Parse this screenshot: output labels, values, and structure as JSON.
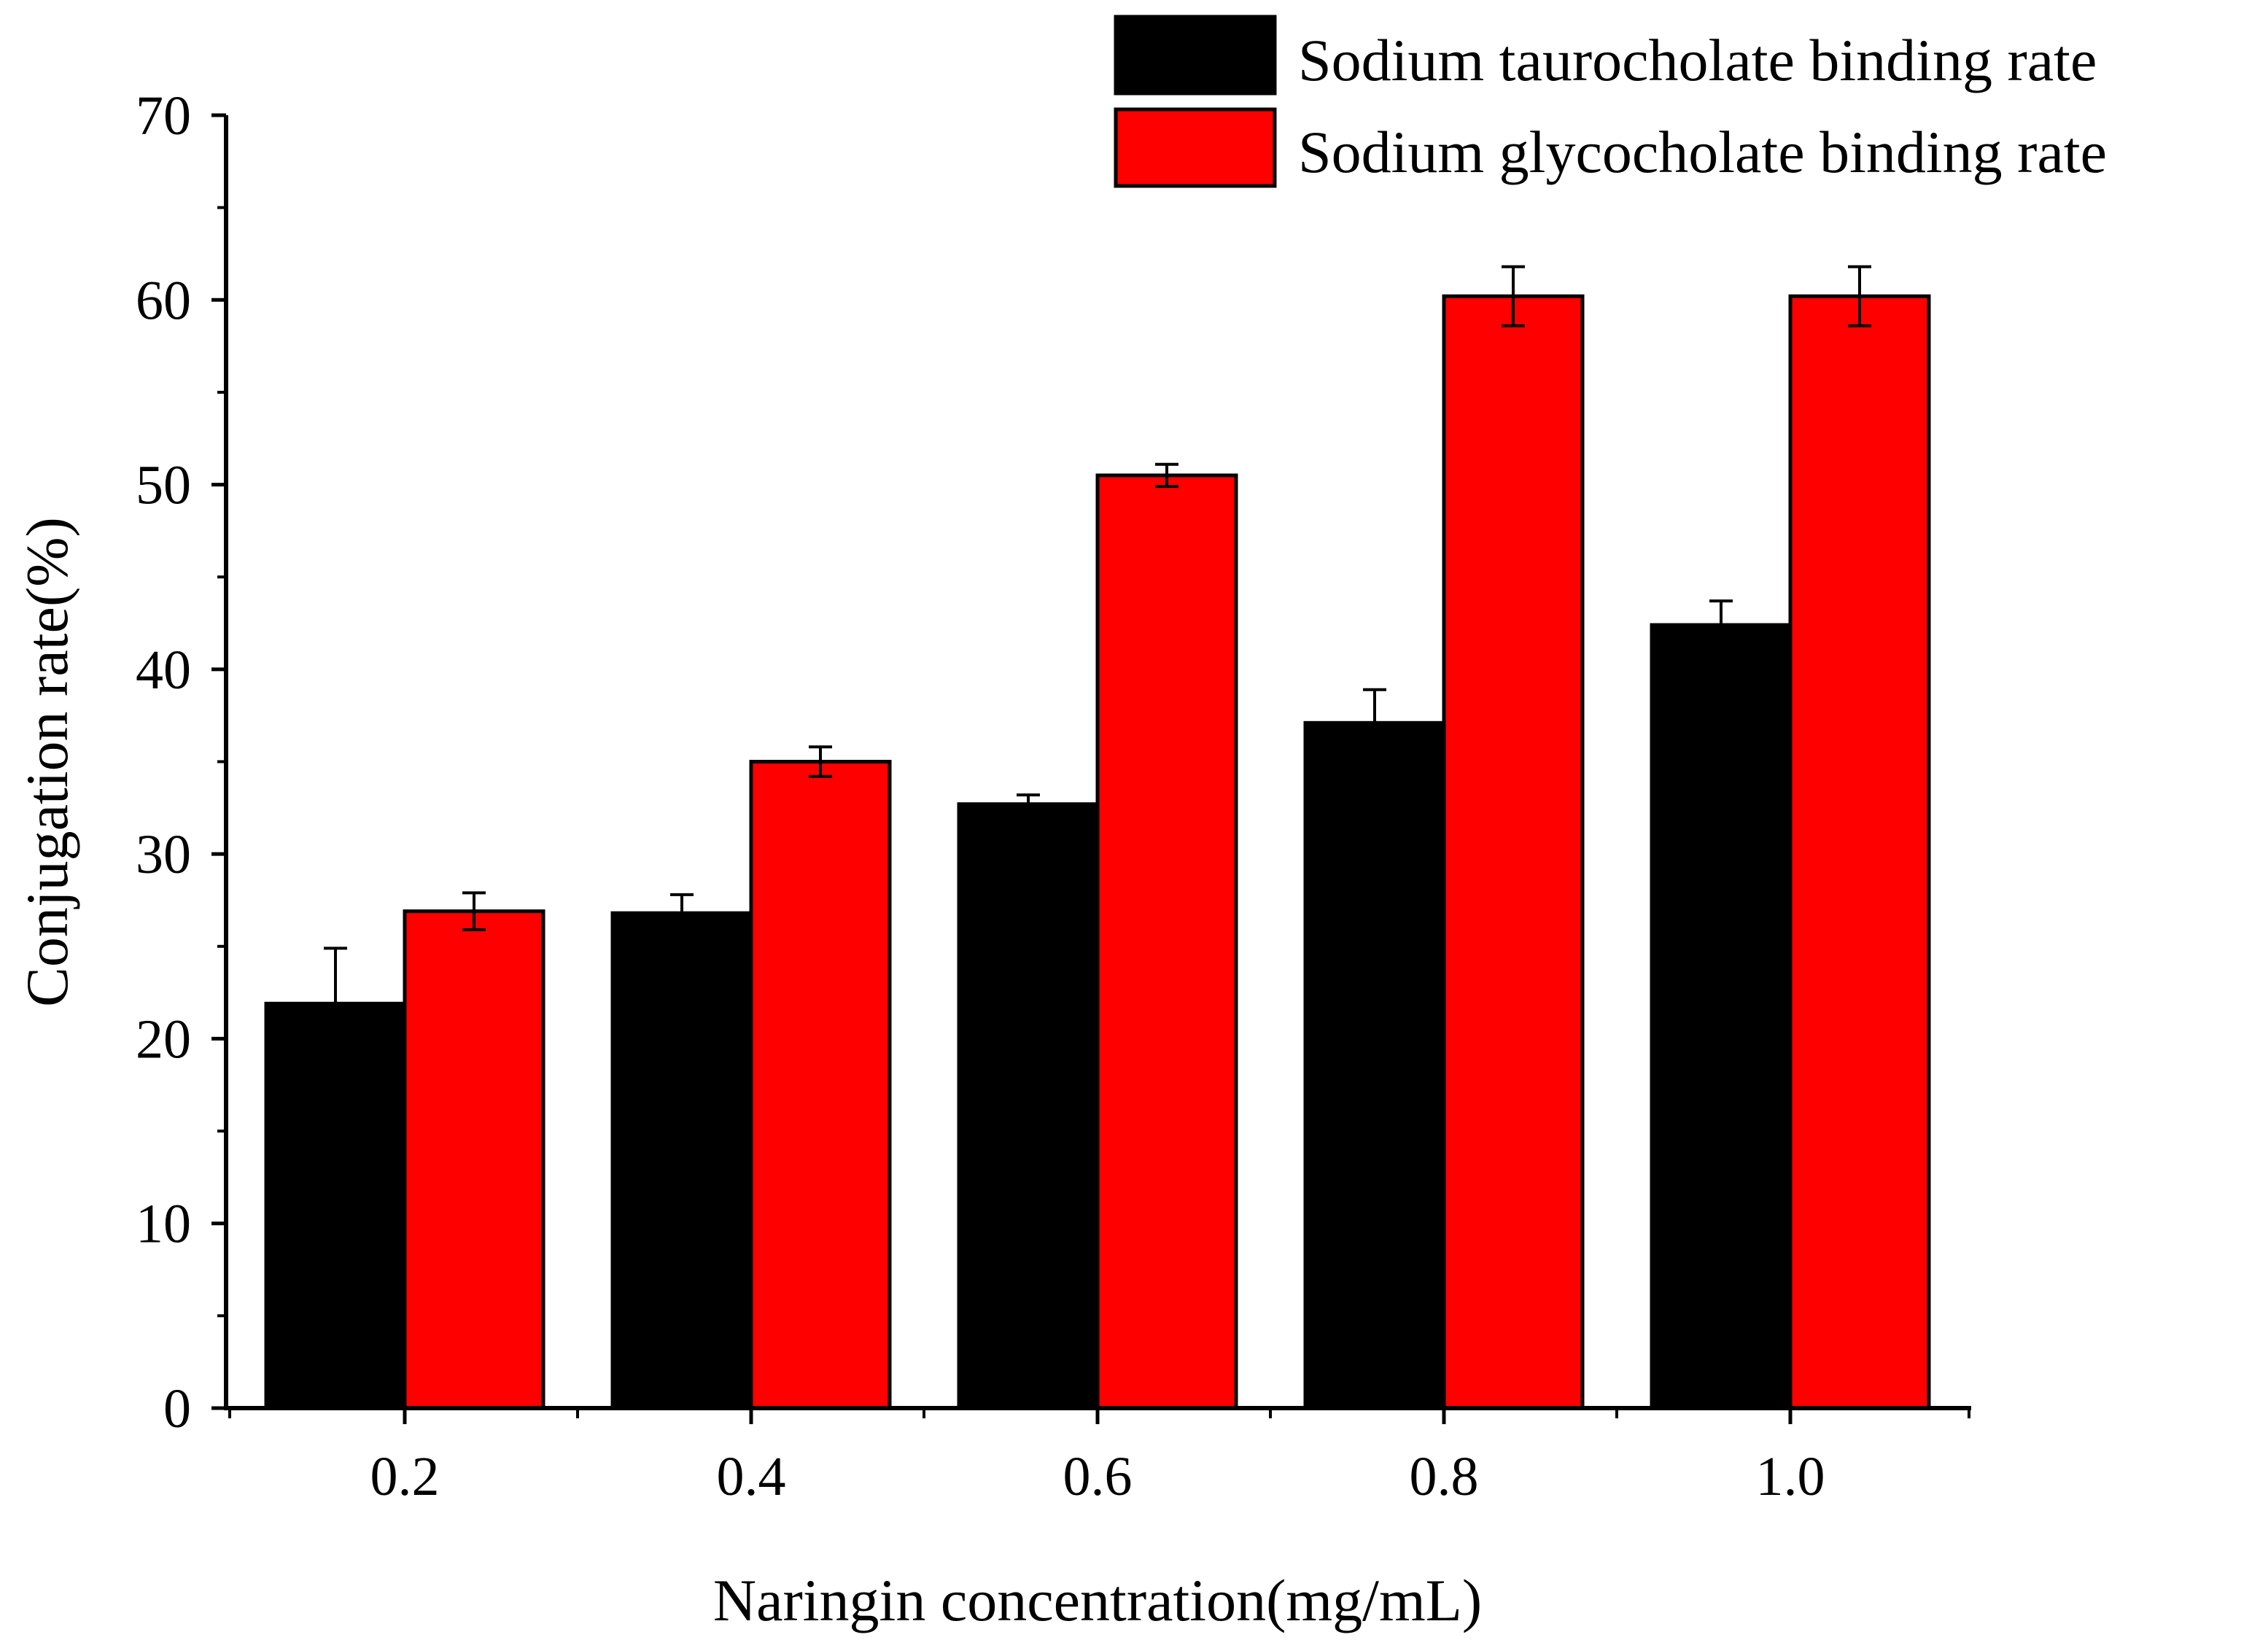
{
  "chart_data": {
    "type": "bar",
    "title": "",
    "xlabel": "Naringin concentration(mg/mL)",
    "ylabel": "Conjugation rate(%)",
    "categories": [
      "0.2",
      "0.4",
      "0.6",
      "0.8",
      "1.0"
    ],
    "ylim": [
      0,
      70
    ],
    "yticks": [
      "0",
      "10",
      "20",
      "30",
      "40",
      "50",
      "60",
      "70"
    ],
    "grid": false,
    "legend_position": "top-right",
    "series": [
      {
        "name": "Sodium taurocholate binding rate",
        "color": "#000000",
        "values": [
          21.9,
          26.8,
          32.7,
          37.1,
          42.4
        ],
        "errors": [
          3.0,
          1.0,
          0.5,
          1.8,
          1.3
        ]
      },
      {
        "name": "Sodium glycocholate binding rate",
        "color": "#ff0000",
        "values": [
          26.9,
          35.0,
          50.5,
          60.2,
          60.2
        ],
        "errors": [
          1.0,
          0.8,
          0.6,
          1.6,
          1.6
        ]
      }
    ]
  }
}
